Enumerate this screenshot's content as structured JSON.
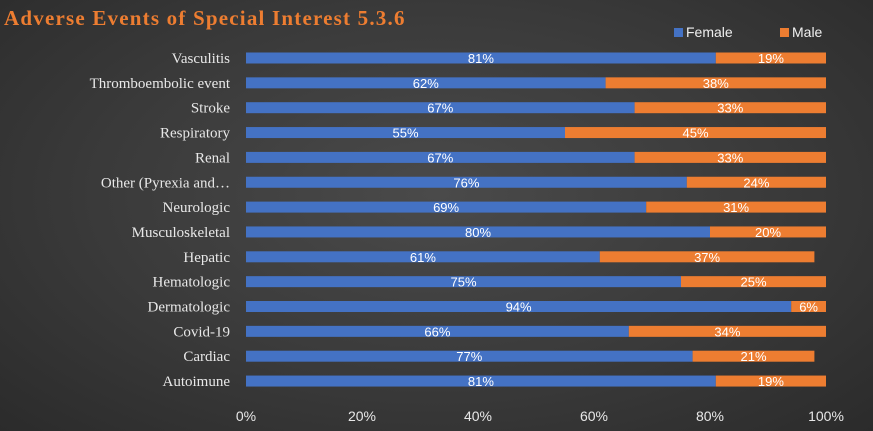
{
  "chart_data": {
    "type": "bar",
    "orientation": "horizontal",
    "stacked": true,
    "title": "Adverse Events of Special Interest 5.3.6",
    "categories": [
      "Vasculitis",
      "Thromboembolic event",
      "Stroke",
      "Respiratory",
      "Renal",
      "Other (Pyrexia and…",
      "Neurologic",
      "Musculoskeletal",
      "Hepatic",
      "Hematologic",
      "Dermatologic",
      "Covid-19",
      "Cardiac",
      "Autoimune"
    ],
    "series": [
      {
        "name": "Female",
        "color": "#4472c4",
        "values": [
          81,
          62,
          67,
          55,
          67,
          76,
          69,
          80,
          61,
          75,
          94,
          66,
          77,
          81
        ],
        "labels": [
          "81%",
          "62%",
          "67%",
          "55%",
          "67%",
          "76%",
          "69%",
          "80%",
          "61%",
          "75%",
          "94%",
          "66%",
          "77%",
          "81%"
        ]
      },
      {
        "name": "Male",
        "color": "#ed7d31",
        "values": [
          19,
          38,
          33,
          45,
          33,
          24,
          31,
          20,
          37,
          25,
          6,
          34,
          21,
          19
        ],
        "labels": [
          "19%",
          "38%",
          "33%",
          "45%",
          "33%",
          "24%",
          "31%",
          "20%",
          "37%",
          "25%",
          "6%",
          "34%",
          "21%",
          "19%"
        ]
      }
    ],
    "xlim": [
      0,
      100
    ],
    "xticks": [
      "0%",
      "20%",
      "40%",
      "60%",
      "80%",
      "100%"
    ],
    "legend_position": "top-right",
    "grid": false
  }
}
